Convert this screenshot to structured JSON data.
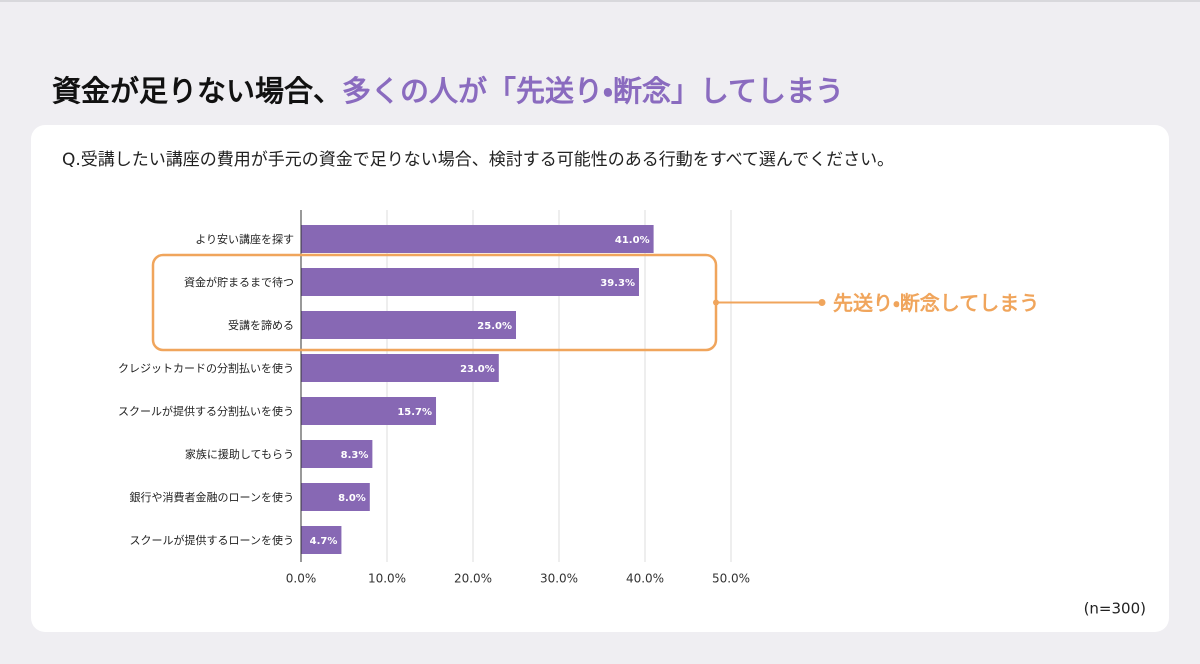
{
  "chart_data": {
    "type": "hbar",
    "title": [
      "資金が足りない場合、",
      "多くの人が「先送り・断念」してしまう"
    ],
    "question": "Q.受講したい講座の費用が手元の資金で足りない場合、検討する可能性のある行動をすべて選んでください。",
    "categories": [
      "より安い講座を探す",
      "資金が貯まるまで待つ",
      "受講を諦める",
      "クレジットカードの分割払いを使う",
      "スクールが提供する分割払いを使う",
      "家族に援助してもらう",
      "銀行や消費者金融のローンを使う",
      "スクールが提供するローンを使う"
    ],
    "values": [
      41.0,
      39.3,
      25.0,
      23.0,
      15.7,
      8.3,
      8.0,
      4.7
    ],
    "value_labels": [
      "41.0%",
      "39.3%",
      "25.0%",
      "23.0%",
      "15.7%",
      "8.3%",
      "8.0%",
      "4.7%"
    ],
    "color": "#8768b4",
    "xlim": [
      0,
      50
    ],
    "xticks": [
      {
        "value": 0,
        "label": "0.0%"
      },
      {
        "value": 10,
        "label": "10.0%"
      },
      {
        "value": 20,
        "label": "20.0%"
      },
      {
        "value": 30,
        "label": "30.0%"
      },
      {
        "value": 40,
        "label": "40.0%"
      },
      {
        "value": 50,
        "label": "50.0%"
      }
    ],
    "grid": true,
    "annotation": "先送り・断念してしまう",
    "note": "(n=300)"
  }
}
